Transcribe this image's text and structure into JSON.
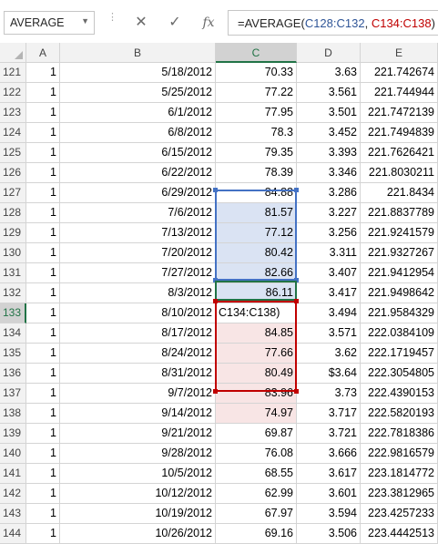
{
  "formula_bar": {
    "name_box": "AVERAGE",
    "cancel_icon": "✕",
    "enter_icon": "✓",
    "fx_label": "fx",
    "formula_prefix": "=AVERAGE(",
    "formula_ref1": "C128:C132",
    "formula_sep": ", ",
    "formula_ref2": "C134:C138",
    "formula_suffix": ")"
  },
  "columns": [
    "A",
    "B",
    "C",
    "D",
    "E"
  ],
  "active_cell": {
    "row": "133",
    "column": "C",
    "edit_text": "C134:C138)"
  },
  "rows": [
    {
      "num": "121",
      "a": "1",
      "b": "5/18/2012",
      "c": "70.33",
      "d": "3.63",
      "e": "221.742674"
    },
    {
      "num": "122",
      "a": "1",
      "b": "5/25/2012",
      "c": "77.22",
      "d": "3.561",
      "e": "221.744944"
    },
    {
      "num": "123",
      "a": "1",
      "b": "6/1/2012",
      "c": "77.95",
      "d": "3.501",
      "e": "221.7472139"
    },
    {
      "num": "124",
      "a": "1",
      "b": "6/8/2012",
      "c": "78.3",
      "d": "3.452",
      "e": "221.7494839"
    },
    {
      "num": "125",
      "a": "1",
      "b": "6/15/2012",
      "c": "79.35",
      "d": "3.393",
      "e": "221.7626421"
    },
    {
      "num": "126",
      "a": "1",
      "b": "6/22/2012",
      "c": "78.39",
      "d": "3.346",
      "e": "221.8030211"
    },
    {
      "num": "127",
      "a": "1",
      "b": "6/29/2012",
      "c": "84.88",
      "d": "3.286",
      "e": "221.8434"
    },
    {
      "num": "128",
      "a": "1",
      "b": "7/6/2012",
      "c": "81.57",
      "d": "3.227",
      "e": "221.8837789"
    },
    {
      "num": "129",
      "a": "1",
      "b": "7/13/2012",
      "c": "77.12",
      "d": "3.256",
      "e": "221.9241579"
    },
    {
      "num": "130",
      "a": "1",
      "b": "7/20/2012",
      "c": "80.42",
      "d": "3.311",
      "e": "221.9327267"
    },
    {
      "num": "131",
      "a": "1",
      "b": "7/27/2012",
      "c": "82.66",
      "d": "3.407",
      "e": "221.9412954"
    },
    {
      "num": "132",
      "a": "1",
      "b": "8/3/2012",
      "c": "86.11",
      "d": "3.417",
      "e": "221.9498642"
    },
    {
      "num": "133",
      "a": "1",
      "b": "8/10/2012",
      "c": "",
      "d": "3.494",
      "e": "221.9584329"
    },
    {
      "num": "134",
      "a": "1",
      "b": "8/17/2012",
      "c": "84.85",
      "d": "3.571",
      "e": "222.0384109"
    },
    {
      "num": "135",
      "a": "1",
      "b": "8/24/2012",
      "c": "77.66",
      "d": "3.62",
      "e": "222.1719457"
    },
    {
      "num": "136",
      "a": "1",
      "b": "8/31/2012",
      "c": "80.49",
      "d": "$3.64",
      "e": "222.3054805"
    },
    {
      "num": "137",
      "a": "1",
      "b": "9/7/2012",
      "c": "83.96",
      "d": "3.73",
      "e": "222.4390153"
    },
    {
      "num": "138",
      "a": "1",
      "b": "9/14/2012",
      "c": "74.97",
      "d": "3.717",
      "e": "222.5820193"
    },
    {
      "num": "139",
      "a": "1",
      "b": "9/21/2012",
      "c": "69.87",
      "d": "3.721",
      "e": "222.7818386"
    },
    {
      "num": "140",
      "a": "1",
      "b": "9/28/2012",
      "c": "76.08",
      "d": "3.666",
      "e": "222.9816579"
    },
    {
      "num": "141",
      "a": "1",
      "b": "10/5/2012",
      "c": "68.55",
      "d": "3.617",
      "e": "223.1814772"
    },
    {
      "num": "142",
      "a": "1",
      "b": "10/12/2012",
      "c": "62.99",
      "d": "3.601",
      "e": "223.3812965"
    },
    {
      "num": "143",
      "a": "1",
      "b": "10/19/2012",
      "c": "67.97",
      "d": "3.594",
      "e": "223.4257233"
    },
    {
      "num": "144",
      "a": "1",
      "b": "10/26/2012",
      "c": "69.16",
      "d": "3.506",
      "e": "223.4442513"
    }
  ],
  "highlight_colors": {
    "blue_range": "#4472c4",
    "red_range": "#c00000",
    "active": "#217346"
  }
}
